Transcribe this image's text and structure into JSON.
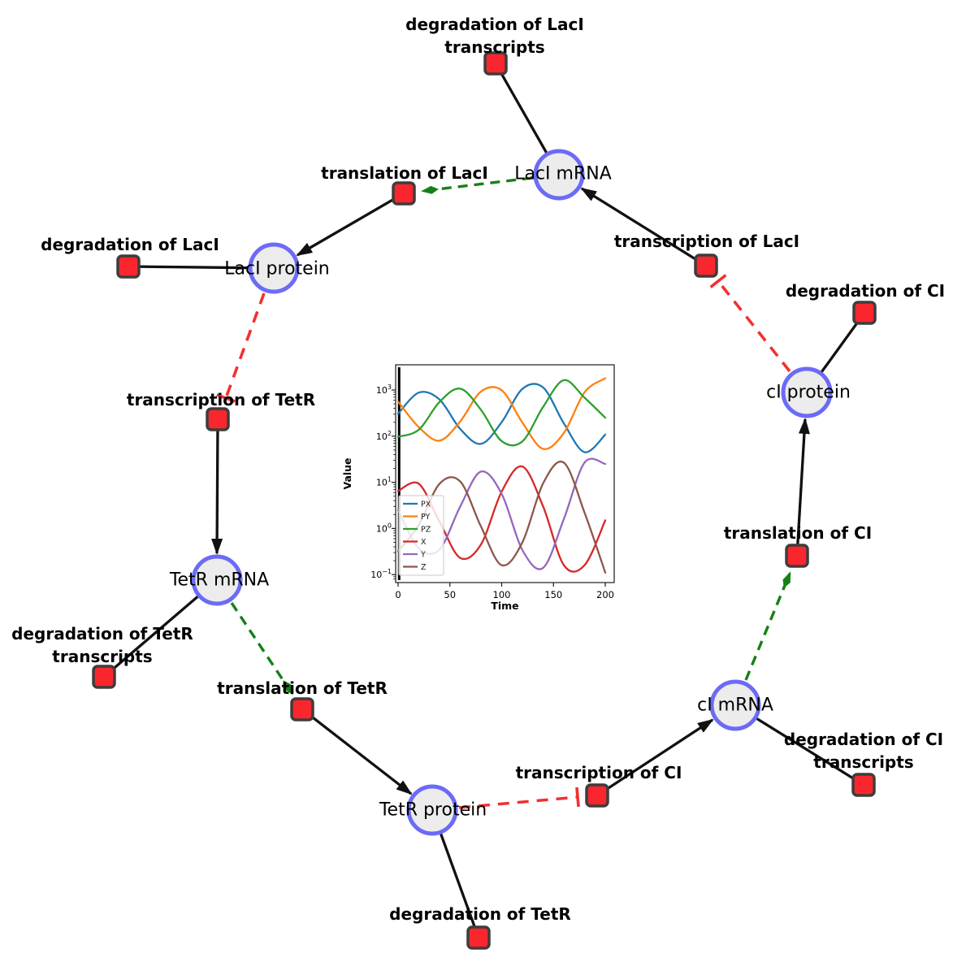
{
  "style": {
    "background": "#ffffff",
    "species_fill": "#ececec",
    "species_border": "#6b6bf7",
    "reaction_fill": "#f9262e",
    "reaction_border": "#3d3d3d",
    "edge_color": "#111111",
    "activation_edge_color": "#168016",
    "inhibition_edge_color": "#f23030",
    "label_color": "#000000"
  },
  "nodes": {
    "laci_mrna": {
      "label": "LacI mRNA",
      "type": "species"
    },
    "laci_protein": {
      "label": "LacI protein",
      "type": "species"
    },
    "tetr_mrna": {
      "label": "TetR mRNA",
      "type": "species"
    },
    "tetr_protein": {
      "label": "TetR protein",
      "type": "species"
    },
    "ci_mrna": {
      "label": "cI mRNA",
      "type": "species"
    },
    "ci_protein": {
      "label": "cI protein",
      "type": "species"
    }
  },
  "reactions": {
    "deg_laci_tx": {
      "line1": "degradation of LacI",
      "line2": "transcripts"
    },
    "translation_laci": {
      "label": "translation of LacI"
    },
    "deg_laci": {
      "label": "degradation of LacI"
    },
    "transcription_tetr": {
      "label": "transcription of TetR"
    },
    "deg_tetr_tx": {
      "line1": "degradation of TetR",
      "line2": "transcripts"
    },
    "translation_tetr": {
      "label": "translation of TetR"
    },
    "deg_tetr": {
      "label": "degradation of TetR"
    },
    "transcription_ci": {
      "label": "transcription of CI"
    },
    "deg_ci_tx": {
      "line1": "degradation of CI",
      "line2": "transcripts"
    },
    "translation_ci": {
      "label": "translation of CI"
    },
    "deg_ci": {
      "label": "degradation of CI"
    },
    "transcription_laci": {
      "label": "transcription of LacI"
    }
  },
  "chart_data": {
    "type": "line",
    "title": "",
    "xlabel": "Time",
    "ylabel": "Value",
    "x_range": [
      0,
      200
    ],
    "x_ticks": [
      0,
      50,
      100,
      150,
      200
    ],
    "y_scale": "log",
    "y_tick_exponents": [
      -1,
      0,
      1,
      2,
      3
    ],
    "grid": false,
    "legend_position": "lower left",
    "legend": [
      "PX",
      "PY",
      "PZ",
      "X",
      "Y",
      "Z"
    ],
    "initial_spike_at_x": 1,
    "x": [
      0,
      20,
      40,
      60,
      80,
      100,
      120,
      140,
      160,
      180,
      200
    ],
    "series": [
      {
        "name": "PX",
        "color": "#1f77b4",
        "values": [
          306,
          877,
          622,
          143,
          68,
          201,
          1059,
          1132,
          190,
          45,
          108
        ]
      },
      {
        "name": "PY",
        "color": "#ff7f0e",
        "values": [
          561,
          156,
          80,
          209,
          924,
          988,
          197,
          53,
          117,
          894,
          1791
        ]
      },
      {
        "name": "PZ",
        "color": "#2ca02c",
        "values": [
          97,
          138,
          550,
          1069,
          372,
          78,
          77,
          431,
          1630,
          681,
          250
        ]
      },
      {
        "name": "X",
        "color": "#d62728",
        "values": [
          6.5,
          9.3,
          1.4,
          0.23,
          0.45,
          6.3,
          22,
          3.0,
          0.16,
          0.16,
          1.5
        ]
      },
      {
        "name": "Y",
        "color": "#9467bd",
        "values": [
          2.5,
          0.37,
          0.35,
          3.0,
          17.1,
          5.6,
          0.34,
          0.14,
          1.6,
          26.8,
          25
        ]
      },
      {
        "name": "Z",
        "color": "#8c564b",
        "values": [
          0.32,
          1.2,
          9.3,
          10.4,
          1.1,
          0.16,
          0.5,
          9.5,
          26.7,
          2.2,
          0.11
        ]
      }
    ]
  }
}
